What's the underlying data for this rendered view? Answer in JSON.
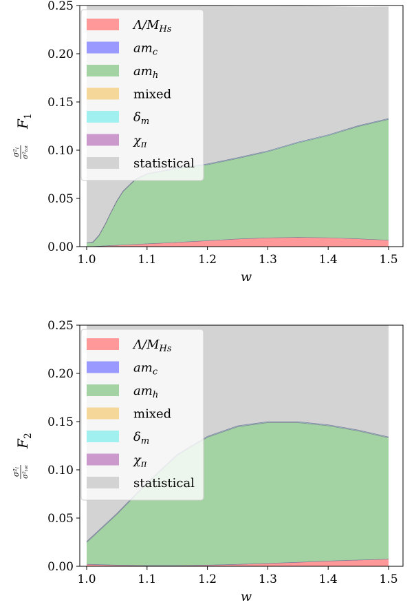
{
  "chart_data": [
    {
      "type": "area",
      "stacked": true,
      "ylabel_lhs": "σ²ᵢ/σ²ₜₒₜ",
      "ylabel_rhs": "F1",
      "xlabel": "w",
      "xlim": [
        1.0,
        1.5
      ],
      "ylim": [
        0.0,
        0.25
      ],
      "xticks": [
        "1.0",
        "1.1",
        "1.2",
        "1.3",
        "1.4",
        "1.5"
      ],
      "yticks": [
        "0.00",
        "0.05",
        "0.10",
        "0.15",
        "0.20",
        "0.25"
      ],
      "legend_position": "top-left",
      "x": [
        1.0,
        1.01,
        1.02,
        1.03,
        1.04,
        1.05,
        1.06,
        1.08,
        1.1,
        1.15,
        1.2,
        1.25,
        1.3,
        1.35,
        1.4,
        1.45,
        1.5
      ],
      "series": [
        {
          "name": "Λ/M_Hs",
          "color": "#ff9999",
          "values": [
            0.0,
            0.0003,
            0.0006,
            0.0009,
            0.0012,
            0.0015,
            0.0018,
            0.0024,
            0.003,
            0.0045,
            0.0062,
            0.008,
            0.0092,
            0.0097,
            0.0093,
            0.0082,
            0.0068
          ]
        },
        {
          "name": "am_c",
          "color": "#9999ff",
          "values": [
            0.0,
            0.0001,
            0.0001,
            0.0001,
            0.0001,
            0.0001,
            0.0001,
            0.0001,
            0.0001,
            0.0001,
            0.0001,
            0.0001,
            0.0001,
            0.0001,
            0.0001,
            0.0001,
            0.0001
          ]
        },
        {
          "name": "am_h",
          "color": "#a3d3a3",
          "values": [
            0.004,
            0.0037,
            0.0104,
            0.0211,
            0.0338,
            0.0455,
            0.0551,
            0.0665,
            0.072,
            0.0764,
            0.0787,
            0.0834,
            0.0892,
            0.0978,
            0.1058,
            0.1164,
            0.1251
          ]
        },
        {
          "name": "mixed",
          "color": "#f5d79a",
          "values": [
            0.0,
            0.0002,
            0.0002,
            0.0002,
            0.0002,
            0.0002,
            0.0002,
            0.0002,
            0.0002,
            0.0002,
            0.0002,
            0.0002,
            0.0002,
            0.0002,
            0.0002,
            0.0002,
            0.0002
          ]
        },
        {
          "name": "δ_m",
          "color": "#a0f0f0",
          "values": [
            0.0,
            0.0005,
            0.0005,
            0.0005,
            0.0005,
            0.0005,
            0.0005,
            0.0005,
            0.0005,
            0.0006,
            0.0006,
            0.0006,
            0.0006,
            0.0006,
            0.0006,
            0.0006,
            0.0006
          ]
        },
        {
          "name": "χ_π",
          "color": "#cc99cc",
          "values": [
            0.0,
            0.0002,
            0.0002,
            0.0002,
            0.0002,
            0.0002,
            0.0002,
            0.0002,
            0.0002,
            0.0002,
            0.0002,
            0.0002,
            0.0002,
            0.0002,
            0.0002,
            0.0002,
            0.0002
          ]
        },
        {
          "name": "statistical",
          "color": "#d3d3d3",
          "values": [
            0.246,
            0.245,
            0.238,
            0.227,
            0.214,
            0.202,
            0.192,
            0.18,
            0.174,
            0.168,
            0.164,
            0.157,
            0.15,
            0.141,
            0.133,
            0.123,
            0.116
          ]
        }
      ]
    },
    {
      "type": "area",
      "stacked": true,
      "ylabel_lhs": "σ²ᵢ/σ²ₜₒₜ",
      "ylabel_rhs": "F2",
      "xlabel": "w",
      "xlim": [
        1.0,
        1.5
      ],
      "ylim": [
        0.0,
        0.25
      ],
      "xticks": [
        "1.0",
        "1.1",
        "1.2",
        "1.3",
        "1.4",
        "1.5"
      ],
      "yticks": [
        "0.00",
        "0.05",
        "0.10",
        "0.15",
        "0.20",
        "0.25"
      ],
      "legend_position": "top-left",
      "x": [
        1.0,
        1.05,
        1.1,
        1.15,
        1.2,
        1.25,
        1.3,
        1.35,
        1.4,
        1.45,
        1.5
      ],
      "series": [
        {
          "name": "Λ/M_Hs",
          "color": "#ff9999",
          "values": [
            0.002,
            0.0012,
            0.0008,
            0.0008,
            0.0012,
            0.002,
            0.003,
            0.0042,
            0.0055,
            0.0065,
            0.0075
          ]
        },
        {
          "name": "am_c",
          "color": "#9999ff",
          "values": [
            0.0003,
            0.0002,
            0.0002,
            0.0002,
            0.0002,
            0.0002,
            0.0002,
            0.0002,
            0.0002,
            0.0002,
            0.0002
          ]
        },
        {
          "name": "am_h",
          "color": "#a3d3a3",
          "values": [
            0.0225,
            0.0525,
            0.0849,
            0.1141,
            0.1324,
            0.1425,
            0.1458,
            0.1446,
            0.1401,
            0.1336,
            0.1255
          ]
        },
        {
          "name": "mixed",
          "color": "#f5d79a",
          "values": [
            0.0003,
            0.0003,
            0.0003,
            0.0003,
            0.0003,
            0.0003,
            0.0003,
            0.0003,
            0.0003,
            0.0003,
            0.0003
          ]
        },
        {
          "name": "δ_m",
          "color": "#a0f0f0",
          "values": [
            0.0006,
            0.0006,
            0.0006,
            0.0006,
            0.0006,
            0.0006,
            0.0006,
            0.0006,
            0.0006,
            0.0006,
            0.0006
          ]
        },
        {
          "name": "χ_π",
          "color": "#cc99cc",
          "values": [
            0.0003,
            0.0003,
            0.0003,
            0.0003,
            0.0003,
            0.0003,
            0.0003,
            0.0003,
            0.0003,
            0.0003,
            0.0003
          ]
        },
        {
          "name": "statistical",
          "color": "#d3d3d3",
          "values": [
            0.224,
            0.195,
            0.163,
            0.134,
            0.115,
            0.104,
            0.1,
            0.1,
            0.103,
            0.109,
            0.116
          ]
        }
      ]
    }
  ],
  "legend": [
    {
      "label_main": "Λ/M",
      "label_sub": "Hs",
      "math": true
    },
    {
      "label_main": "am",
      "label_sub": "c",
      "math": true
    },
    {
      "label_main": "am",
      "label_sub": "h",
      "math": true
    },
    {
      "label_main": "mixed",
      "label_sub": "",
      "math": false
    },
    {
      "label_main": "δ",
      "label_sub": "m",
      "math": true
    },
    {
      "label_main": "χ",
      "label_sub": "π",
      "math": true
    },
    {
      "label_main": "statistical",
      "label_sub": "",
      "math": false
    }
  ],
  "edge_color": "#6e6e8c"
}
